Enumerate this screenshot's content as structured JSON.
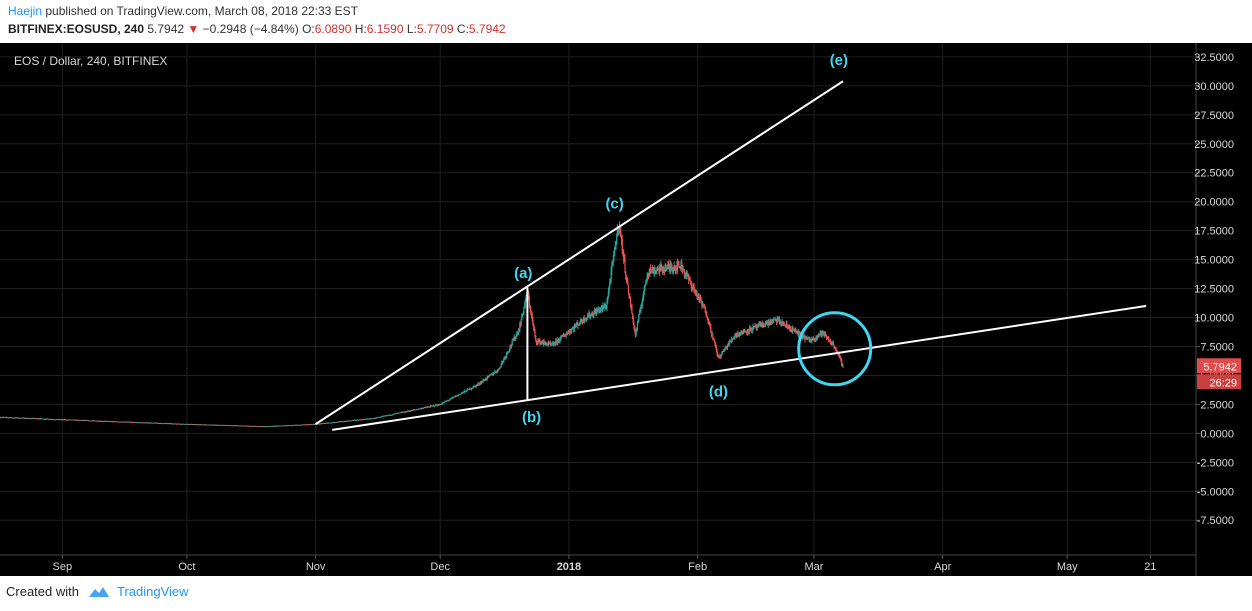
{
  "header": {
    "author": "Haejin",
    "published_text": "published on TradingView.com, March 08, 2018 22:33 EST",
    "symbol": "BITFINEX:EOSUSD, 240",
    "last": "5.7942",
    "arrow": "▼",
    "change": "−0.2948 (−4.84%)",
    "open_label": "O:",
    "open": "6.0890",
    "high_label": "H:",
    "high": "6.1590",
    "low_label": "L:",
    "low": "5.7709",
    "close_label": "C:",
    "close": "5.7942"
  },
  "footer": {
    "created_with": "Created with",
    "brand": "TradingView"
  },
  "colors": {
    "up": "#26a69a",
    "down": "#ef5350",
    "annotation": "#3fd6f0",
    "line": "#ffffff",
    "background": "#000000",
    "grid": "#1f1f1f",
    "axis_text": "#d8d8d8",
    "price_label": "#e04b4b"
  },
  "chart_data": {
    "type": "candlestick",
    "title": "EOS / Dollar, 240, BITFINEX",
    "x_axis": {
      "ticks": [
        "Sep",
        "Oct",
        "Nov",
        "Dec",
        "2018",
        "Feb",
        "Mar",
        "Apr",
        "May",
        "21"
      ],
      "tick_dates": [
        "2017-09-01",
        "2017-10-01",
        "2017-11-01",
        "2017-12-01",
        "2018-01-01",
        "2018-02-01",
        "2018-03-01",
        "2018-04-01",
        "2018-05-01",
        "2018-05-21"
      ],
      "range": [
        "2017-08-17",
        "2018-06-01"
      ]
    },
    "y_axis": {
      "ticks": [
        "32.5000",
        "30.0000",
        "27.5000",
        "25.0000",
        "22.5000",
        "20.0000",
        "17.5000",
        "15.0000",
        "12.5000",
        "10.0000",
        "7.5000",
        "5.0000",
        "2.5000",
        "0.0000",
        "-2.5000",
        "-5.0000",
        "-7.5000"
      ],
      "tick_values": [
        32.5,
        30,
        27.5,
        25,
        22.5,
        20,
        17.5,
        15,
        12.5,
        10,
        7.5,
        5,
        2.5,
        0,
        -2.5,
        -5,
        -7.5
      ],
      "range": [
        -10.5,
        33.7
      ]
    },
    "price_series": {
      "name": "EOSUSD",
      "approx_closes": [
        [
          "2017-08-17",
          1.4
        ],
        [
          "2017-09-15",
          1.0
        ],
        [
          "2017-10-01",
          0.8
        ],
        [
          "2017-10-20",
          0.6
        ],
        [
          "2017-11-01",
          0.8
        ],
        [
          "2017-11-15",
          1.3
        ],
        [
          "2017-12-01",
          2.5
        ],
        [
          "2017-12-10",
          4.2
        ],
        [
          "2017-12-15",
          5.5
        ],
        [
          "2017-12-20",
          9.0
        ],
        [
          "2017-12-22",
          12.2
        ],
        [
          "2017-12-24",
          8.0
        ],
        [
          "2017-12-28",
          7.6
        ],
        [
          "2018-01-05",
          10.0
        ],
        [
          "2018-01-10",
          11.0
        ],
        [
          "2018-01-13",
          18.2
        ],
        [
          "2018-01-15",
          13.0
        ],
        [
          "2018-01-17",
          8.5
        ],
        [
          "2018-01-20",
          14.0
        ],
        [
          "2018-01-28",
          14.5
        ],
        [
          "2018-02-03",
          10.5
        ],
        [
          "2018-02-06",
          6.5
        ],
        [
          "2018-02-10",
          8.5
        ],
        [
          "2018-02-20",
          9.8
        ],
        [
          "2018-02-28",
          8.0
        ],
        [
          "2018-03-03",
          8.7
        ],
        [
          "2018-03-06",
          7.5
        ],
        [
          "2018-03-08",
          5.8
        ]
      ]
    },
    "trendlines": [
      {
        "from": [
          "2017-11-01",
          0.8
        ],
        "to": [
          "2018-03-08",
          30.4
        ]
      },
      {
        "from": [
          "2017-11-05",
          0.3
        ],
        "to": [
          "2018-05-20",
          11.0
        ]
      },
      {
        "from": [
          "2017-12-22",
          12.6
        ],
        "to": [
          "2017-12-22",
          2.9
        ]
      }
    ],
    "annotations": [
      {
        "text": "(a)",
        "date": "2017-12-21",
        "value": 13.4
      },
      {
        "text": "(b)",
        "date": "2017-12-23",
        "value": 1.0
      },
      {
        "text": "(c)",
        "date": "2018-01-12",
        "value": 19.4
      },
      {
        "text": "(d)",
        "date": "2018-02-06",
        "value": 3.2
      },
      {
        "text": "(e)",
        "date": "2018-03-07",
        "value": 31.8
      }
    ],
    "highlight_circle": {
      "date": "2018-03-06",
      "value": 7.3
    },
    "last_price_label": "5.7942",
    "countdown_label": "26:29"
  }
}
